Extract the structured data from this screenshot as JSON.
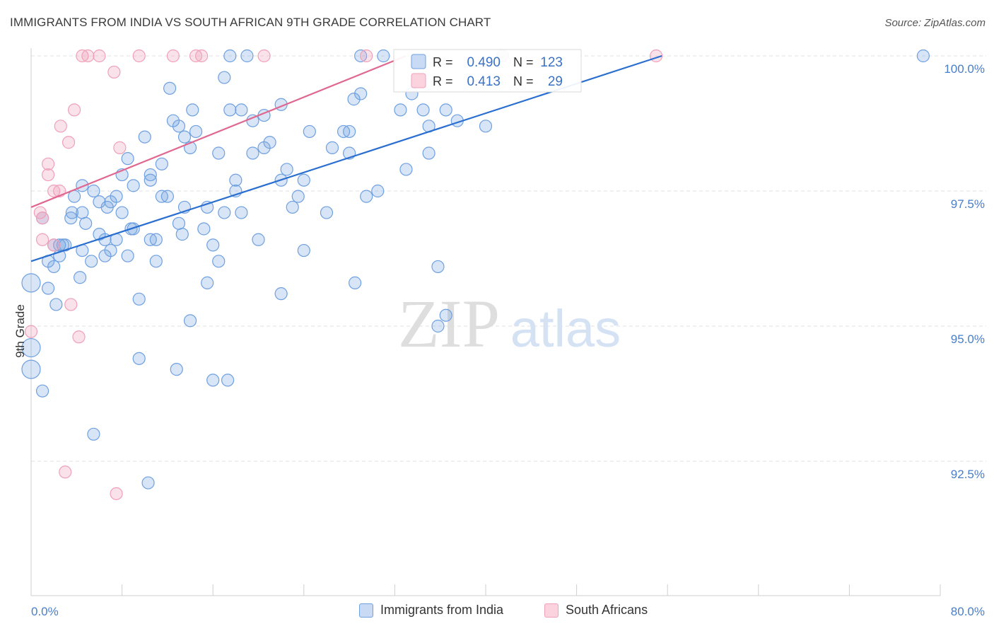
{
  "header": {
    "title": "IMMIGRANTS FROM INDIA VS SOUTH AFRICAN 9TH GRADE CORRELATION CHART",
    "source": "Source: ZipAtlas.com"
  },
  "watermark": {
    "zip": "ZIP",
    "atlas": "atlas"
  },
  "chart_data": {
    "type": "scatter",
    "title": "IMMIGRANTS FROM INDIA VS SOUTH AFRICAN 9TH GRADE CORRELATION CHART",
    "xlabel": "",
    "ylabel": "9th Grade",
    "xlim": [
      0,
      80
    ],
    "ylim": [
      90.0,
      100.5
    ],
    "x_tick_labels": [
      "0.0%",
      "80.0%"
    ],
    "y_ticks": [
      92.5,
      95.0,
      97.5,
      100.0
    ],
    "y_tick_labels": [
      "92.5%",
      "95.0%",
      "97.5%",
      "100.0%"
    ],
    "grid": true,
    "legend_position": "top-center",
    "series": [
      {
        "name": "Immigrants from India",
        "color": "#6fa0e0",
        "line_color": "#2a6fd0",
        "R": "0.490",
        "N": "123",
        "trend": {
          "x": [
            0,
            55.5
          ],
          "y": [
            96.2,
            100.0
          ]
        },
        "points": [
          [
            17.5,
            100.0
          ],
          [
            19.0,
            100.0
          ],
          [
            29.0,
            100.0
          ],
          [
            31.0,
            100.0
          ],
          [
            41.5,
            100.0
          ],
          [
            78.5,
            100.0
          ],
          [
            17.0,
            99.6
          ],
          [
            12.2,
            99.4
          ],
          [
            28.4,
            99.2
          ],
          [
            29.0,
            99.3
          ],
          [
            22.0,
            99.1
          ],
          [
            17.5,
            99.0
          ],
          [
            14.2,
            99.0
          ],
          [
            18.5,
            99.0
          ],
          [
            19.5,
            98.8
          ],
          [
            20.5,
            98.9
          ],
          [
            32.5,
            99.0
          ],
          [
            36.5,
            99.0
          ],
          [
            40.0,
            98.7
          ],
          [
            35.0,
            98.7
          ],
          [
            37.5,
            98.8
          ],
          [
            12.5,
            98.8
          ],
          [
            13.0,
            98.7
          ],
          [
            28.0,
            98.6
          ],
          [
            27.5,
            98.6
          ],
          [
            13.5,
            98.5
          ],
          [
            10.0,
            98.5
          ],
          [
            21.0,
            98.4
          ],
          [
            14.0,
            98.3
          ],
          [
            20.5,
            98.3
          ],
          [
            16.5,
            98.2
          ],
          [
            19.5,
            98.2
          ],
          [
            8.5,
            98.1
          ],
          [
            35.0,
            98.2
          ],
          [
            11.5,
            98.0
          ],
          [
            8.0,
            97.8
          ],
          [
            10.5,
            97.8
          ],
          [
            10.5,
            97.7
          ],
          [
            18.0,
            97.7
          ],
          [
            22.0,
            97.7
          ],
          [
            24.0,
            97.7
          ],
          [
            4.5,
            97.6
          ],
          [
            5.5,
            97.5
          ],
          [
            18.0,
            97.5
          ],
          [
            7.5,
            97.4
          ],
          [
            11.5,
            97.4
          ],
          [
            12.0,
            97.4
          ],
          [
            3.8,
            97.4
          ],
          [
            23.5,
            97.4
          ],
          [
            29.5,
            97.4
          ],
          [
            6.0,
            97.3
          ],
          [
            7.0,
            97.3
          ],
          [
            4.5,
            97.1
          ],
          [
            3.6,
            97.1
          ],
          [
            13.5,
            97.2
          ],
          [
            15.5,
            97.2
          ],
          [
            17.0,
            97.1
          ],
          [
            18.5,
            97.1
          ],
          [
            3.5,
            97.0
          ],
          [
            8.0,
            97.1
          ],
          [
            4.8,
            96.9
          ],
          [
            6.0,
            96.7
          ],
          [
            7.5,
            96.6
          ],
          [
            8.8,
            96.8
          ],
          [
            9.0,
            96.8
          ],
          [
            10.5,
            96.6
          ],
          [
            11.0,
            96.6
          ],
          [
            13.3,
            96.7
          ],
          [
            13.0,
            96.9
          ],
          [
            15.2,
            96.8
          ],
          [
            6.5,
            96.6
          ],
          [
            3.0,
            96.5
          ],
          [
            2.8,
            96.5
          ],
          [
            2.5,
            96.5
          ],
          [
            4.5,
            96.4
          ],
          [
            7.0,
            96.4
          ],
          [
            6.5,
            96.3
          ],
          [
            2.5,
            96.3
          ],
          [
            1.5,
            96.2
          ],
          [
            5.3,
            96.2
          ],
          [
            11.0,
            96.2
          ],
          [
            2.0,
            96.1
          ],
          [
            16.0,
            96.5
          ],
          [
            24.0,
            96.4
          ],
          [
            35.8,
            96.1
          ],
          [
            4.3,
            95.9
          ],
          [
            0.0,
            95.8
          ],
          [
            1.5,
            95.7
          ],
          [
            15.5,
            95.8
          ],
          [
            22.0,
            95.6
          ],
          [
            28.5,
            95.8
          ],
          [
            2.2,
            95.4
          ],
          [
            9.5,
            95.5
          ],
          [
            36.5,
            95.2
          ],
          [
            14.0,
            95.1
          ],
          [
            35.8,
            95.0
          ],
          [
            0.0,
            94.6
          ],
          [
            9.5,
            94.4
          ],
          [
            12.8,
            94.2
          ],
          [
            16.0,
            94.0
          ],
          [
            17.3,
            94.0
          ],
          [
            0.0,
            94.2
          ],
          [
            1.0,
            93.8
          ],
          [
            5.5,
            93.0
          ],
          [
            10.3,
            92.1
          ],
          [
            2.0,
            96.5
          ],
          [
            23.0,
            97.2
          ],
          [
            26.0,
            97.1
          ],
          [
            30.5,
            97.5
          ],
          [
            33.0,
            97.9
          ],
          [
            28.0,
            98.2
          ],
          [
            34.5,
            99.0
          ],
          [
            33.5,
            99.3
          ],
          [
            24.5,
            98.6
          ],
          [
            22.5,
            97.9
          ],
          [
            26.5,
            98.3
          ],
          [
            9.0,
            97.6
          ],
          [
            6.7,
            97.2
          ],
          [
            1.0,
            97.0
          ],
          [
            14.5,
            98.6
          ],
          [
            20.0,
            96.6
          ],
          [
            16.5,
            96.2
          ],
          [
            8.5,
            96.3
          ]
        ]
      },
      {
        "name": "South Africans",
        "color": "#f0a0b8",
        "line_color": "#e06890",
        "R": "0.413",
        "N": "29",
        "trend": {
          "x": [
            0,
            33.0
          ],
          "y": [
            97.2,
            100.0
          ]
        },
        "points": [
          [
            4.5,
            100.0
          ],
          [
            5.0,
            100.0
          ],
          [
            6.0,
            100.0
          ],
          [
            9.5,
            100.0
          ],
          [
            12.5,
            100.0
          ],
          [
            14.5,
            100.0
          ],
          [
            15.0,
            100.0
          ],
          [
            20.5,
            100.0
          ],
          [
            29.5,
            100.0
          ],
          [
            41.5,
            100.0
          ],
          [
            55.0,
            100.0
          ],
          [
            7.3,
            99.7
          ],
          [
            3.8,
            99.0
          ],
          [
            2.6,
            98.7
          ],
          [
            3.3,
            98.4
          ],
          [
            7.8,
            98.3
          ],
          [
            1.5,
            98.0
          ],
          [
            1.5,
            97.8
          ],
          [
            2.5,
            97.5
          ],
          [
            2.0,
            97.5
          ],
          [
            0.8,
            97.1
          ],
          [
            1.0,
            97.0
          ],
          [
            1.0,
            96.6
          ],
          [
            2.0,
            96.5
          ],
          [
            3.5,
            95.4
          ],
          [
            4.2,
            94.8
          ],
          [
            0.0,
            94.9
          ],
          [
            3.0,
            92.3
          ],
          [
            7.5,
            91.9
          ]
        ]
      }
    ]
  }
}
